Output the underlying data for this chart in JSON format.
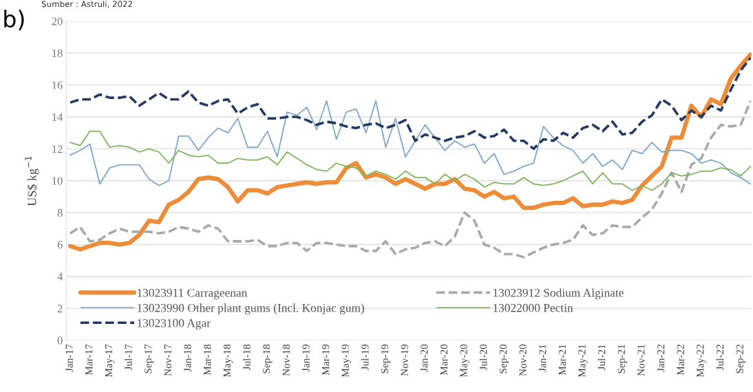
{
  "chart_data": {
    "type": "line",
    "annotations": [
      "Sumber : Astruli, 2022",
      "b)"
    ],
    "ylabel": "US$ kg$^{−1}$",
    "categories": [
      "Jan-17",
      null,
      "Mar-17",
      null,
      "May-17",
      null,
      "Jul-17",
      null,
      "Sep-17",
      null,
      "Nov-17",
      null,
      "Jan-18",
      null,
      "Mar-18",
      null,
      "May-18",
      null,
      "Jul-18",
      null,
      "Sep-18",
      null,
      "Nov-18",
      null,
      "Jan-19",
      null,
      "Mar-19",
      null,
      "May-19",
      null,
      "Jul-19",
      null,
      "Sep-19",
      null,
      "Nov-19",
      null,
      "Jan-20",
      null,
      "Mar-20",
      null,
      "May-20",
      null,
      "Jul-20",
      null,
      "Sep-20",
      null,
      "Nov-20",
      null,
      "Jan-21",
      null,
      "Mar-21",
      null,
      "May-21",
      null,
      "Jul-21",
      null,
      "Sep-21",
      null,
      "Nov-21",
      null,
      "Jan-22",
      null,
      "Mar-22",
      null,
      "May-22",
      null,
      "Jul-22",
      null,
      "Sep-22",
      null
    ],
    "series": [
      {
        "name": "13023911 Carrageenan",
        "color": "#ed8d3a",
        "line_style": "solid",
        "values": [
          5.9,
          5.7,
          5.9,
          6.1,
          6.1,
          6.0,
          6.1,
          6.6,
          7.5,
          7.4,
          8.5,
          8.8,
          9.3,
          10.1,
          10.2,
          10.1,
          9.6,
          8.7,
          9.4,
          9.4,
          9.2,
          9.6,
          9.7,
          9.8,
          9.9,
          9.8,
          9.9,
          9.9,
          10.8,
          11.1,
          10.2,
          10.4,
          10.2,
          9.8,
          10.1,
          9.8,
          9.5,
          9.8,
          9.8,
          10.1,
          9.5,
          9.4,
          9.0,
          9.3,
          8.9,
          9.0,
          8.3,
          8.3,
          8.5,
          8.6,
          8.6,
          8.9,
          8.4,
          8.5,
          8.5,
          8.7,
          8.6,
          8.8,
          9.7,
          10.3,
          10.9,
          12.7,
          12.7,
          14.7,
          14.0,
          15.1,
          14.8,
          16.4,
          17.2,
          17.9
        ]
      },
      {
        "name": "13023912 Sodium Alginate",
        "color": "#a9a9a9",
        "line_style": "dashed",
        "values": [
          6.7,
          7.1,
          6.2,
          6.3,
          6.7,
          7.0,
          6.8,
          6.8,
          6.8,
          6.7,
          6.8,
          7.1,
          7.0,
          6.8,
          7.2,
          7.0,
          6.2,
          6.2,
          6.2,
          6.3,
          5.9,
          5.9,
          6.1,
          6.1,
          5.6,
          6.1,
          6.1,
          6.0,
          5.9,
          5.9,
          5.6,
          5.6,
          6.2,
          5.4,
          5.7,
          5.8,
          6.1,
          6.2,
          5.9,
          6.5,
          8.0,
          7.5,
          6.0,
          5.8,
          5.4,
          5.4,
          5.2,
          5.5,
          5.8,
          6.0,
          6.1,
          6.3,
          7.2,
          6.6,
          6.7,
          7.2,
          7.1,
          7.1,
          7.7,
          8.2,
          9.2,
          10.5,
          9.3,
          11.0,
          11.4,
          12.7,
          13.5,
          13.4,
          13.5,
          15.0
        ]
      },
      {
        "name": "13023990 Other plant gums (Incl. Konjac gum)",
        "color": "#7ea6cf",
        "line_style": "solid",
        "values": [
          11.6,
          11.9,
          12.3,
          9.8,
          10.8,
          11.0,
          11.0,
          11.0,
          10.1,
          9.7,
          10.0,
          12.8,
          12.8,
          11.9,
          12.7,
          13.3,
          13.0,
          13.9,
          12.1,
          12.1,
          13.1,
          11.5,
          14.3,
          14.1,
          14.6,
          13.2,
          15.0,
          12.6,
          14.3,
          14.5,
          13.0,
          15.0,
          12.1,
          13.9,
          11.5,
          12.5,
          13.5,
          12.7,
          11.9,
          12.5,
          12.1,
          12.3,
          11.1,
          11.7,
          10.4,
          10.6,
          10.9,
          11.1,
          13.4,
          12.7,
          12.2,
          11.9,
          11.1,
          11.7,
          10.9,
          11.3,
          10.7,
          11.9,
          11.7,
          12.4,
          11.8,
          11.9,
          11.9,
          11.7,
          11.1,
          11.3,
          11.1,
          10.5,
          10.2,
          9.8
        ]
      },
      {
        "name": "13022000 Pectin",
        "color": "#7fb55c",
        "line_style": "solid",
        "values": [
          12.4,
          12.2,
          13.1,
          13.1,
          12.1,
          12.2,
          12.1,
          11.8,
          12.0,
          11.8,
          11.1,
          11.9,
          11.6,
          11.5,
          11.6,
          11.1,
          11.1,
          11.4,
          11.3,
          11.3,
          11.5,
          11.0,
          11.8,
          11.4,
          11.0,
          10.7,
          10.6,
          11.1,
          10.9,
          10.8,
          10.3,
          10.6,
          10.4,
          10.1,
          10.6,
          10.2,
          10.2,
          9.8,
          10.4,
          10.0,
          10.4,
          10.1,
          9.6,
          9.9,
          9.8,
          9.8,
          10.2,
          9.8,
          9.7,
          9.8,
          10.0,
          10.3,
          10.6,
          9.8,
          10.5,
          9.8,
          9.8,
          9.4,
          9.7,
          9.4,
          9.8,
          10.5,
          10.3,
          10.4,
          10.6,
          10.6,
          10.8,
          10.7,
          10.3,
          10.9
        ]
      },
      {
        "name": "13023100 Agar",
        "color": "#243a63",
        "line_style": "dashed",
        "values": [
          14.9,
          15.1,
          15.1,
          15.4,
          15.2,
          15.2,
          15.3,
          14.7,
          15.1,
          15.5,
          15.1,
          15.1,
          15.6,
          14.9,
          14.7,
          15.0,
          15.1,
          14.2,
          14.6,
          14.8,
          13.9,
          13.9,
          14.0,
          14.0,
          13.8,
          13.5,
          13.7,
          13.6,
          13.4,
          13.3,
          13.5,
          13.6,
          13.3,
          13.5,
          13.8,
          12.5,
          12.9,
          12.7,
          12.5,
          12.7,
          12.8,
          13.1,
          12.7,
          12.8,
          13.2,
          12.5,
          12.5,
          12.0,
          12.6,
          12.5,
          13.0,
          12.7,
          13.3,
          13.5,
          13.1,
          13.7,
          12.9,
          13.0,
          13.7,
          14.1,
          15.1,
          14.7,
          13.8,
          14.4,
          14.0,
          14.7,
          14.4,
          15.7,
          16.9,
          17.7
        ]
      }
    ],
    "ylim": [
      0,
      20
    ],
    "yticks": [
      0,
      2,
      4,
      6,
      8,
      10,
      12,
      14,
      16,
      18,
      20
    ],
    "grid": "y",
    "legend": "bottom",
    "marker": "none"
  }
}
